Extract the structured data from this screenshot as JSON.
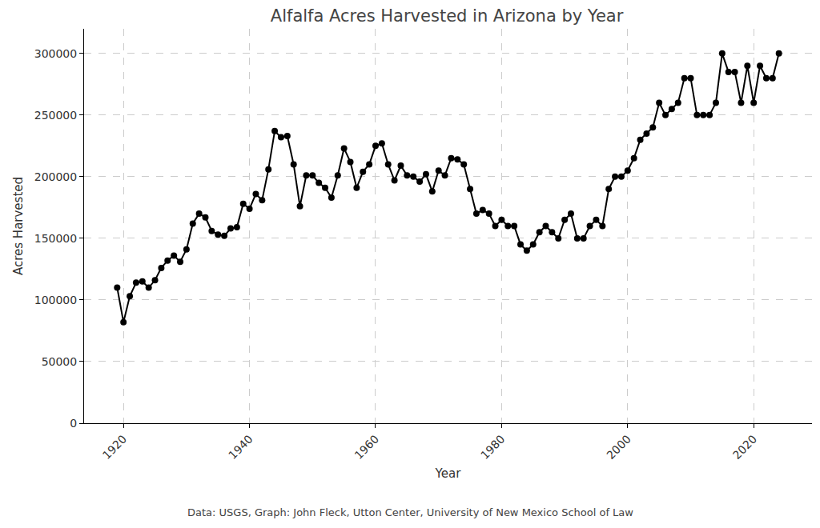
{
  "chart_data": {
    "type": "line",
    "title": "Alfalfa Acres Harvested in Arizona by Year",
    "x_label": "Year",
    "y_label": "Acres Harvested",
    "caption": "Data: USGS, Graph: John Fleck, Utton Center, University of New Mexico School of Law",
    "x": [
      1919,
      1920,
      1921,
      1922,
      1923,
      1924,
      1925,
      1926,
      1927,
      1928,
      1929,
      1930,
      1931,
      1932,
      1933,
      1934,
      1935,
      1936,
      1937,
      1938,
      1939,
      1940,
      1941,
      1942,
      1943,
      1944,
      1945,
      1946,
      1947,
      1948,
      1949,
      1950,
      1951,
      1952,
      1953,
      1954,
      1955,
      1956,
      1957,
      1958,
      1959,
      1960,
      1961,
      1962,
      1963,
      1964,
      1965,
      1966,
      1967,
      1968,
      1969,
      1970,
      1971,
      1972,
      1973,
      1974,
      1975,
      1976,
      1977,
      1978,
      1979,
      1980,
      1981,
      1982,
      1983,
      1984,
      1985,
      1986,
      1987,
      1988,
      1989,
      1990,
      1991,
      1992,
      1993,
      1994,
      1995,
      1996,
      1997,
      1998,
      1999,
      2000,
      2001,
      2002,
      2003,
      2004,
      2005,
      2006,
      2007,
      2008,
      2009,
      2010,
      2011,
      2012,
      2013,
      2014,
      2015,
      2016,
      2017,
      2018,
      2019,
      2020,
      2021,
      2022,
      2023,
      2024
    ],
    "values": [
      110000,
      82000,
      103000,
      114000,
      115000,
      110000,
      116000,
      126000,
      132000,
      136000,
      131000,
      141000,
      162000,
      170000,
      167000,
      156000,
      153000,
      152000,
      158000,
      159000,
      178000,
      174000,
      186000,
      181000,
      206000,
      237000,
      232000,
      233000,
      210000,
      176000,
      201000,
      201000,
      195000,
      191000,
      183000,
      201000,
      223000,
      212000,
      191000,
      204000,
      210000,
      225000,
      227000,
      210000,
      197000,
      209000,
      201000,
      200000,
      196000,
      202000,
      188000,
      205000,
      201000,
      215000,
      214000,
      210000,
      190000,
      170000,
      173000,
      170000,
      160000,
      165000,
      160000,
      160000,
      145000,
      140000,
      145000,
      155000,
      160000,
      155000,
      150000,
      165000,
      170000,
      150000,
      150000,
      160000,
      165000,
      160000,
      190000,
      200000,
      200000,
      205000,
      215000,
      230000,
      235000,
      240000,
      260000,
      250000,
      255000,
      260000,
      280000,
      280000,
      250000,
      250000,
      250000,
      260000,
      300000,
      285000,
      285000,
      260000,
      290000,
      260000,
      290000,
      280000,
      280000,
      300000
    ],
    "color": "#000000",
    "marker": "circle",
    "line_style": "solid",
    "xlim": [
      1913.75,
      2029.25
    ],
    "xticks": [
      1920,
      1940,
      1960,
      1980,
      2000,
      2020
    ],
    "ylim": [
      0,
      320000
    ],
    "yticks": [
      0,
      50000,
      100000,
      150000,
      200000,
      250000,
      300000
    ],
    "grid": true
  }
}
